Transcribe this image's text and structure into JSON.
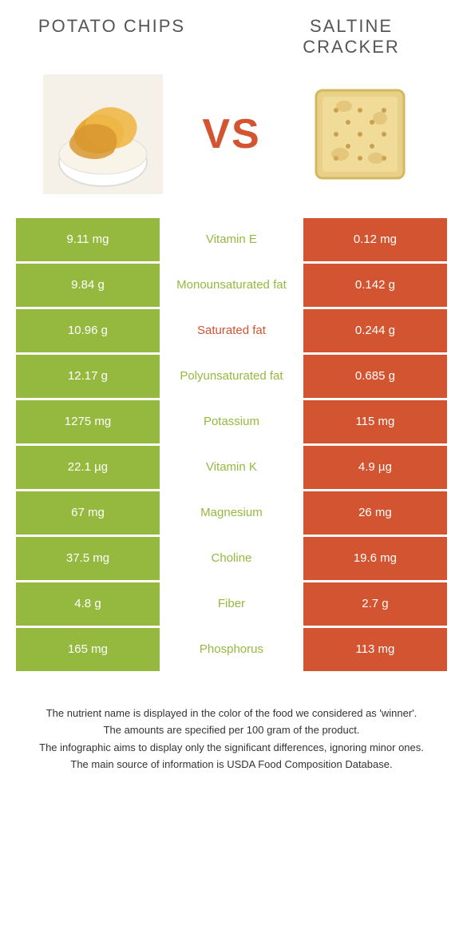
{
  "colors": {
    "left": "#95b93e",
    "right": "#d35430",
    "rowGap": "#ffffff",
    "titleText": "#555555",
    "vsText": "#d35430"
  },
  "header": {
    "leftTitle": "POTATO CHIPS",
    "rightTitle": "SALTINE CRACKER",
    "vs": "VS"
  },
  "rows": [
    {
      "left": "9.11 mg",
      "mid": "Vitamin E",
      "right": "0.12 mg",
      "winner": "left"
    },
    {
      "left": "9.84 g",
      "mid": "Monounsaturated fat",
      "right": "0.142 g",
      "winner": "left"
    },
    {
      "left": "10.96 g",
      "mid": "Saturated fat",
      "right": "0.244 g",
      "winner": "right"
    },
    {
      "left": "12.17 g",
      "mid": "Polyunsaturated fat",
      "right": "0.685 g",
      "winner": "left"
    },
    {
      "left": "1275 mg",
      "mid": "Potassium",
      "right": "115 mg",
      "winner": "left"
    },
    {
      "left": "22.1 µg",
      "mid": "Vitamin K",
      "right": "4.9 µg",
      "winner": "left"
    },
    {
      "left": "67 mg",
      "mid": "Magnesium",
      "right": "26 mg",
      "winner": "left"
    },
    {
      "left": "37.5 mg",
      "mid": "Choline",
      "right": "19.6 mg",
      "winner": "left"
    },
    {
      "left": "4.8 g",
      "mid": "Fiber",
      "right": "2.7 g",
      "winner": "left"
    },
    {
      "left": "165 mg",
      "mid": "Phosphorus",
      "right": "113 mg",
      "winner": "left"
    }
  ],
  "footer": {
    "line1": "The nutrient name is displayed in the color of the food we considered as 'winner'.",
    "line2": "The amounts are specified per 100 gram of the product.",
    "line3": "The infographic aims to display only the significant differences, ignoring minor ones.",
    "line4": "The main source of information is USDA Food Composition Database."
  }
}
